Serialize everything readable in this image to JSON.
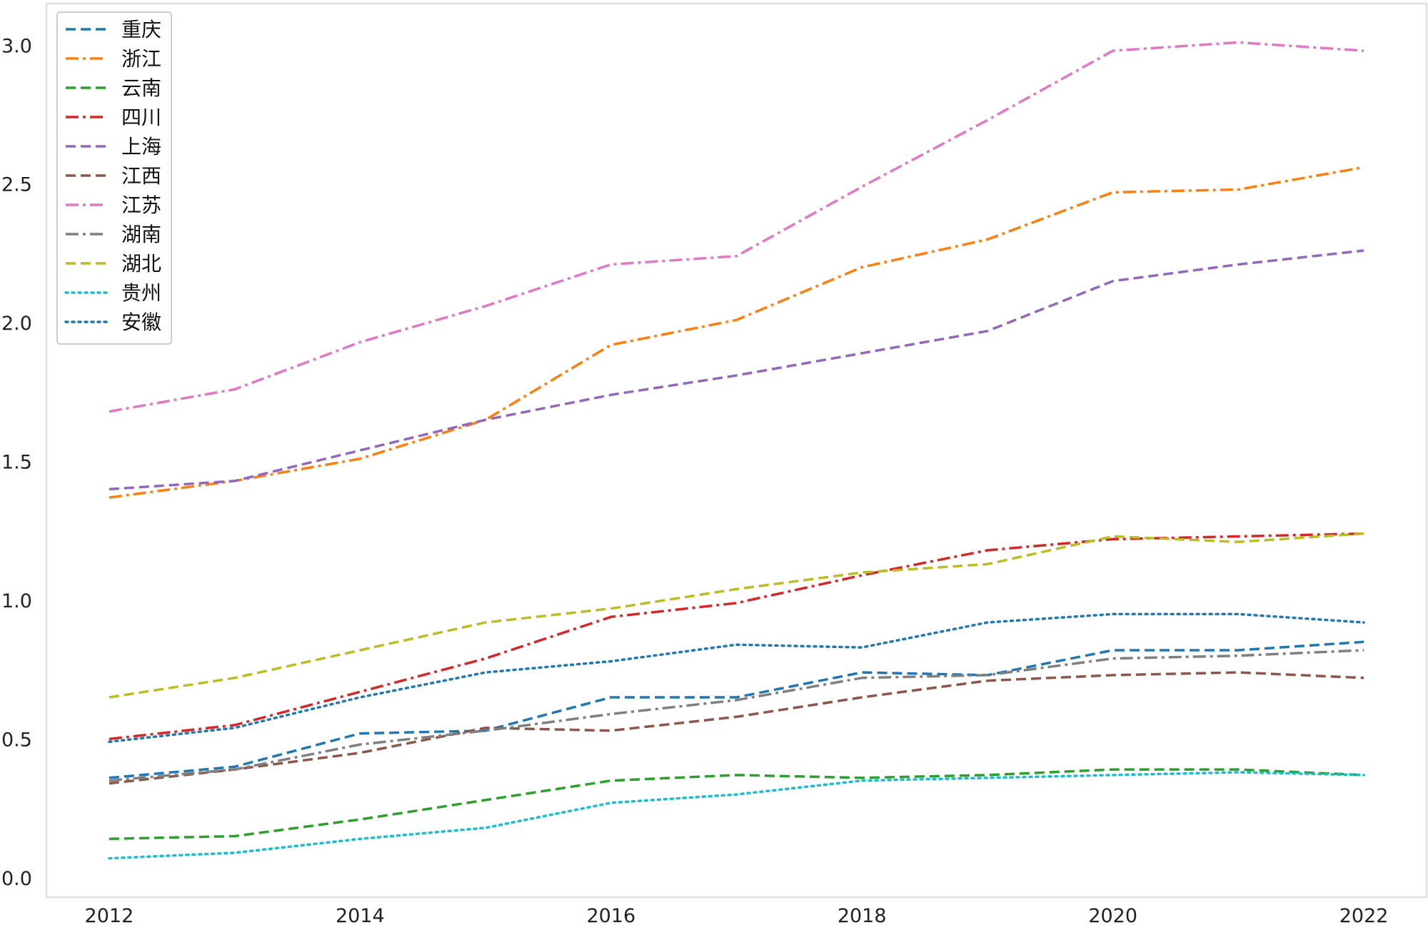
{
  "chart_data": {
    "type": "line",
    "title": "",
    "xlabel": "",
    "ylabel": "",
    "x": [
      2012,
      2013,
      2014,
      2015,
      2016,
      2017,
      2018,
      2019,
      2020,
      2021,
      2022
    ],
    "xlim": [
      2011.5,
      2022.5
    ],
    "ylim": [
      -0.07,
      3.15
    ],
    "x_ticks": [
      2012,
      2014,
      2016,
      2018,
      2020,
      2022
    ],
    "x_tick_labels": [
      "2012",
      "2014",
      "2016",
      "2018",
      "2020",
      "2022"
    ],
    "y_ticks": [
      0.0,
      0.5,
      1.0,
      1.5,
      2.0,
      2.5,
      3.0
    ],
    "y_tick_labels": [
      "0.0",
      "0.5",
      "1.0",
      "1.5",
      "2.0",
      "2.5",
      "3.0"
    ],
    "grid": false,
    "legend_position": "top-left",
    "series": [
      {
        "name": "重庆",
        "color": "#1f77b4",
        "dash": "dashed",
        "values": [
          0.36,
          0.4,
          0.52,
          0.53,
          0.65,
          0.65,
          0.74,
          0.73,
          0.82,
          0.82,
          0.85
        ]
      },
      {
        "name": "浙江",
        "color": "#ff7f0e",
        "dash": "dashdot",
        "values": [
          1.37,
          1.43,
          1.51,
          1.65,
          1.92,
          2.01,
          2.2,
          2.3,
          2.47,
          2.48,
          2.56
        ]
      },
      {
        "name": "云南",
        "color": "#2ca02c",
        "dash": "dashed",
        "values": [
          0.14,
          0.15,
          0.21,
          0.28,
          0.35,
          0.37,
          0.36,
          0.37,
          0.39,
          0.39,
          0.37
        ]
      },
      {
        "name": "四川",
        "color": "#d62728",
        "dash": "dashdot",
        "values": [
          0.5,
          0.55,
          0.67,
          0.79,
          0.94,
          0.99,
          1.09,
          1.18,
          1.22,
          1.23,
          1.24
        ]
      },
      {
        "name": "上海",
        "color": "#9467bd",
        "dash": "dashed",
        "values": [
          1.4,
          1.43,
          1.54,
          1.65,
          1.74,
          1.81,
          1.89,
          1.97,
          2.15,
          2.21,
          2.26
        ]
      },
      {
        "name": "江西",
        "color": "#8c564b",
        "dash": "dashed",
        "values": [
          0.34,
          0.39,
          0.45,
          0.54,
          0.53,
          0.58,
          0.65,
          0.71,
          0.73,
          0.74,
          0.72
        ]
      },
      {
        "name": "江苏",
        "color": "#e377c2",
        "dash": "dashdot",
        "values": [
          1.68,
          1.76,
          1.93,
          2.06,
          2.21,
          2.24,
          2.49,
          2.73,
          2.98,
          3.01,
          2.98
        ]
      },
      {
        "name": "湖南",
        "color": "#7f7f7f",
        "dash": "dashdot",
        "values": [
          0.35,
          0.39,
          0.48,
          0.53,
          0.59,
          0.64,
          0.72,
          0.73,
          0.79,
          0.8,
          0.82
        ]
      },
      {
        "name": "湖北",
        "color": "#bcbd22",
        "dash": "dashed",
        "values": [
          0.65,
          0.72,
          0.82,
          0.92,
          0.97,
          1.04,
          1.1,
          1.13,
          1.23,
          1.21,
          1.24
        ]
      },
      {
        "name": "贵州",
        "color": "#17becf",
        "dash": "dotted",
        "values": [
          0.07,
          0.09,
          0.14,
          0.18,
          0.27,
          0.3,
          0.35,
          0.36,
          0.37,
          0.38,
          0.37
        ]
      },
      {
        "name": "安徽",
        "color": "#1f77b4",
        "dash": "dotted",
        "values": [
          0.49,
          0.54,
          0.65,
          0.74,
          0.78,
          0.84,
          0.83,
          0.92,
          0.95,
          0.95,
          0.92
        ]
      }
    ]
  }
}
